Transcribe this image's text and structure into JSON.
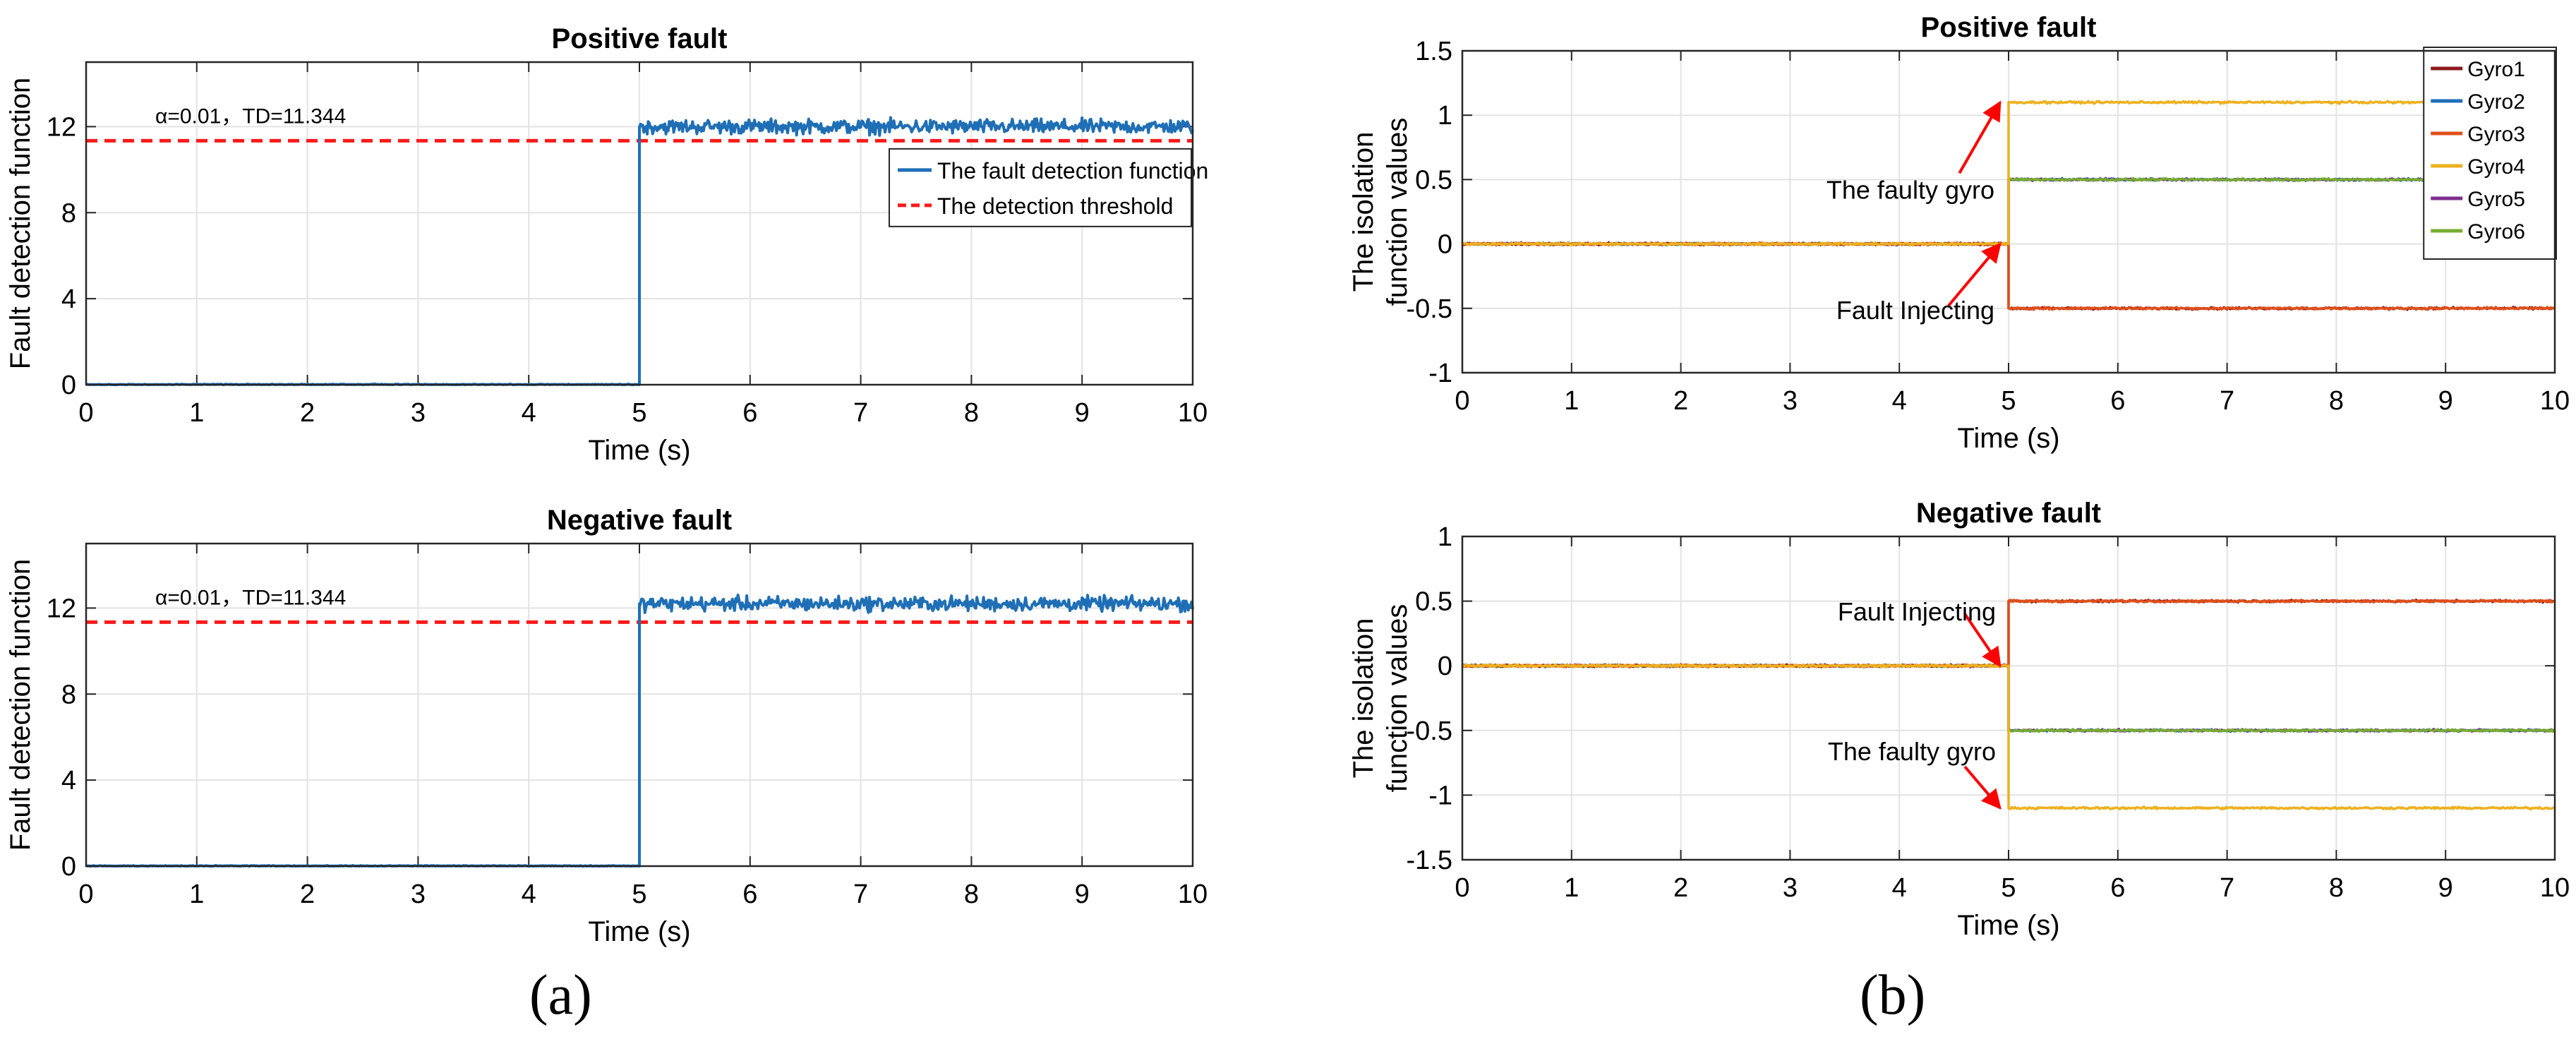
{
  "panel_labels": {
    "a": "(a)",
    "b": "(b)"
  },
  "colors": {
    "detection": "#1f6fb6",
    "threshold": "#ff1a1a",
    "arrow": "#ff0000",
    "gyro1": "#8b1a1a",
    "gyro2": "#1f6fb6",
    "gyro3": "#e0501a",
    "gyro4": "#edb120",
    "gyro5": "#7e2f8e",
    "gyro6": "#77ac30"
  },
  "chart_data": [
    {
      "id": "a_top",
      "type": "line",
      "title": "Positive fault",
      "xlabel": "Time (s)",
      "ylabel": "Fault detection function",
      "xlim": [
        0,
        10
      ],
      "ylim": [
        0,
        15
      ],
      "xticks": [
        0,
        1,
        2,
        3,
        4,
        5,
        6,
        7,
        8,
        9,
        10
      ],
      "yticks": [
        0,
        4,
        8,
        12
      ],
      "grid": true,
      "annotation": "α=0.01，TD=11.344",
      "threshold": 11.344,
      "fault_time": 5,
      "series": [
        {
          "name": "The fault detection function",
          "before": 0.0,
          "after_mean": 12.0,
          "noise": 0.35
        },
        {
          "name": "The detection threshold",
          "value": 11.344
        }
      ],
      "legend": "right"
    },
    {
      "id": "a_bottom",
      "type": "line",
      "title": "Negative fault",
      "xlabel": "Time (s)",
      "ylabel": "Fault detection function",
      "xlim": [
        0,
        10
      ],
      "ylim": [
        0,
        15
      ],
      "xticks": [
        0,
        1,
        2,
        3,
        4,
        5,
        6,
        7,
        8,
        9,
        10
      ],
      "yticks": [
        0,
        4,
        8,
        12
      ],
      "grid": true,
      "annotation": "α=0.01，TD=11.344",
      "threshold": 11.344,
      "fault_time": 5,
      "series": [
        {
          "name": "The fault detection function",
          "before": 0.0,
          "after_mean": 12.2,
          "noise": 0.35
        }
      ]
    },
    {
      "id": "b_top",
      "type": "line",
      "title": "Positive fault",
      "xlabel": "Time (s)",
      "ylabel": [
        "The isolation",
        "function values"
      ],
      "xlim": [
        0,
        10
      ],
      "ylim": [
        -1,
        1.5
      ],
      "xticks": [
        0,
        1,
        2,
        3,
        4,
        5,
        6,
        7,
        8,
        9,
        10
      ],
      "yticks": [
        -1,
        -0.5,
        0,
        0.5,
        1,
        1.5
      ],
      "grid": true,
      "fault_time": 5,
      "series": [
        {
          "name": "Gyro1",
          "before": 0,
          "after": -0.5
        },
        {
          "name": "Gyro2",
          "before": 0,
          "after": 0.5
        },
        {
          "name": "Gyro3",
          "before": 0,
          "after": -0.5
        },
        {
          "name": "Gyro4",
          "before": 0,
          "after": 1.1
        },
        {
          "name": "Gyro5",
          "before": 0,
          "after": 0.5
        },
        {
          "name": "Gyro6",
          "before": 0,
          "after": 0.5
        }
      ],
      "legend": "top-right",
      "annotations": [
        {
          "text": "The faulty gyro",
          "x": 5,
          "y": 1.1
        },
        {
          "text": "Fault Injecting",
          "x": 5,
          "y": 0
        }
      ]
    },
    {
      "id": "b_bottom",
      "type": "line",
      "title": "Negative fault",
      "xlabel": "Time (s)",
      "ylabel": [
        "The isolation",
        "function values"
      ],
      "xlim": [
        0,
        10
      ],
      "ylim": [
        -1.5,
        1
      ],
      "xticks": [
        0,
        1,
        2,
        3,
        4,
        5,
        6,
        7,
        8,
        9,
        10
      ],
      "yticks": [
        -1.5,
        -1,
        -0.5,
        0,
        0.5,
        1
      ],
      "grid": true,
      "fault_time": 5,
      "series": [
        {
          "name": "Gyro1",
          "before": 0,
          "after": 0.5
        },
        {
          "name": "Gyro2",
          "before": 0,
          "after": -0.5
        },
        {
          "name": "Gyro3",
          "before": 0,
          "after": 0.5
        },
        {
          "name": "Gyro4",
          "before": 0,
          "after": -1.1
        },
        {
          "name": "Gyro5",
          "before": 0,
          "after": -0.5
        },
        {
          "name": "Gyro6",
          "before": 0,
          "after": -0.5
        }
      ],
      "annotations": [
        {
          "text": "Fault Injecting",
          "x": 5,
          "y": 0
        },
        {
          "text": "The faulty gyro",
          "x": 5,
          "y": -1.1
        }
      ]
    }
  ]
}
